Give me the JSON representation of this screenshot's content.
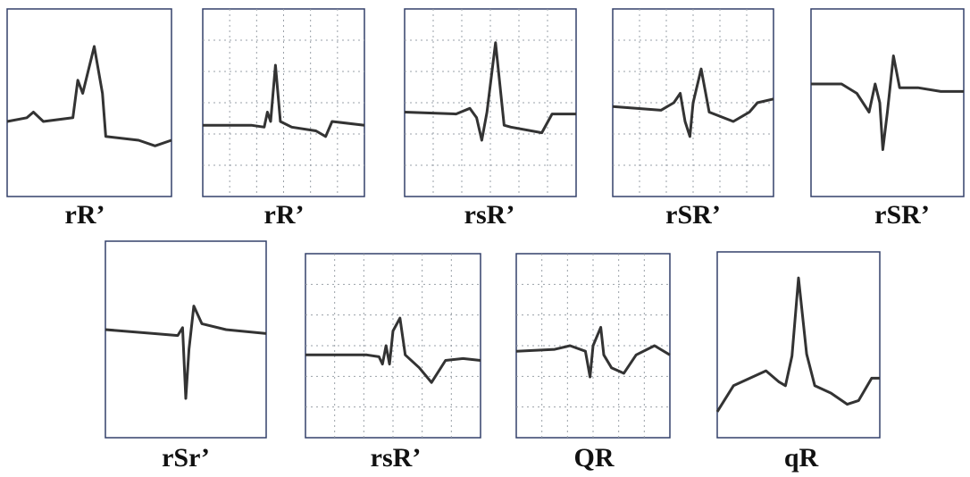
{
  "panels": [
    {
      "label": "rR’"
    },
    {
      "label": "rR’"
    },
    {
      "label": "rsR’"
    },
    {
      "label": "rSR’"
    },
    {
      "label": "rSR’"
    },
    {
      "label": "rSr’"
    },
    {
      "label": "rsR’"
    },
    {
      "label": "QR"
    },
    {
      "label": "qR"
    }
  ]
}
